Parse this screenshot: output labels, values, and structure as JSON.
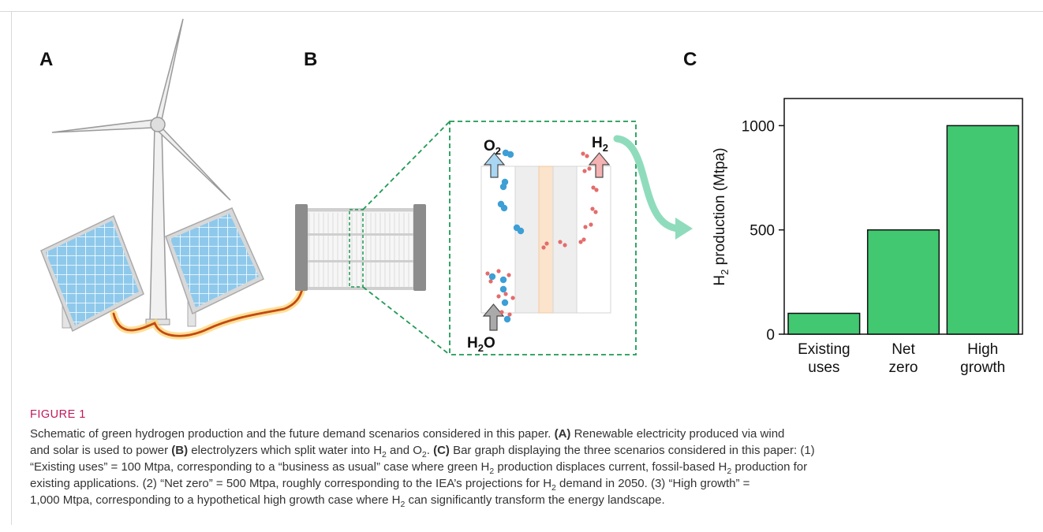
{
  "panels": {
    "a": "A",
    "b": "B",
    "c": "C"
  },
  "labels": {
    "o2": "O",
    "o2_sub": "2",
    "h2": "H",
    "h2_sub": "2",
    "h2o_a": "H",
    "h2o_sub": "2",
    "h2o_b": "O"
  },
  "chart_data": {
    "type": "bar",
    "categories": [
      [
        "Existing",
        "uses"
      ],
      [
        "Net",
        "zero"
      ],
      [
        "High",
        "growth"
      ]
    ],
    "values": [
      100,
      500,
      1000
    ],
    "ylabel": "H",
    "ylabel_sub": "2",
    "ylabel_rest": " production (Mtpa)",
    "yticks": [
      0,
      500,
      1000
    ],
    "ylim": [
      0,
      1130
    ],
    "bar_color": "#41c871",
    "grid": false
  },
  "caption": {
    "figure_label": "FIGURE 1",
    "l1": "Schematic of green hydrogen production and the future demand scenarios considered in this paper. ",
    "l1b": "(A)",
    "l1c": " Renewable electricity produced via wind",
    "l2": "and solar is used to power ",
    "l2b": "(B)",
    "l2c": " electrolyzers which split water into H",
    "l2sub1": "2",
    "l2d": " and O",
    "l2sub2": "2",
    "l2e": ". ",
    "l2f": "(C)",
    "l2g": " Bar graph displaying the three scenarios considered in this paper: (1)",
    "l3": "“Existing uses” = 100 Mtpa, corresponding to a “business as usual” case where green H",
    "l3sub": "2",
    "l3b": " production displaces current, fossil-based H",
    "l3sub2": "2",
    "l3c": " production for",
    "l4": "existing applications. (2) “Net zero” = 500 Mtpa, roughly corresponding to the IEA’s projections for H",
    "l4sub": "2",
    "l4b": " demand in 2050. (3) “High growth” =",
    "l5": "1,000 Mtpa, corresponding to a hypothetical high growth case where H",
    "l5sub": "2",
    "l5b": " can significantly transform the energy landscape."
  },
  "colors": {
    "panel_blue": "#8ec9ec",
    "membrane": "#fbe3cc",
    "o2_bubble": "#3d9fd6",
    "h2_bubble": "#e46c6c",
    "dashed_box": "#1f9a54",
    "arrow_teal": "#8fdcbc"
  }
}
